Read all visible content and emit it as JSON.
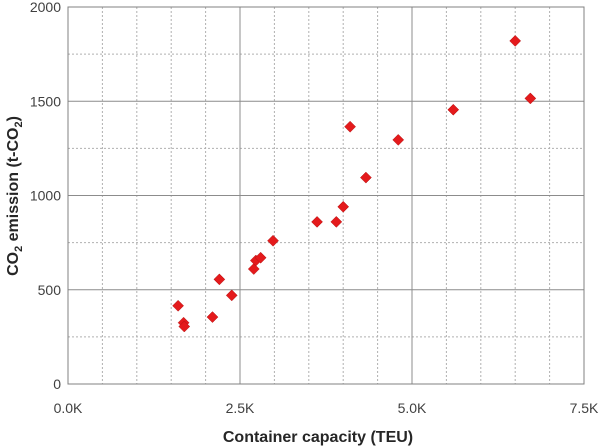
{
  "chart_data": {
    "type": "scatter",
    "title": "",
    "xlabel": "Container capacity (TEU)",
    "ylabel_parts": [
      "CO",
      "2",
      " emission (t-CO",
      "2",
      ")"
    ],
    "xlim": [
      0,
      7500
    ],
    "ylim": [
      0,
      2000
    ],
    "x_ticks": [
      0,
      2500,
      5000,
      7500
    ],
    "x_tick_labels": [
      "0.0K",
      "2.5K",
      "5.0K",
      "7.5K"
    ],
    "y_ticks": [
      0,
      500,
      1000,
      1500,
      2000
    ],
    "y_tick_labels": [
      "0",
      "500",
      "1000",
      "1500",
      "2000"
    ],
    "grid": {
      "major": true,
      "minor_dashed": true,
      "x_minor_step": 500,
      "y_minor_step": 250
    },
    "legend": "none",
    "marker": "diamond",
    "marker_color": "#e41a1c",
    "series": [
      {
        "x": [
          1600,
          1680,
          1690,
          2100,
          2200,
          2380,
          2700,
          2730,
          2800,
          2980,
          3620,
          3900,
          4000,
          4100,
          4330,
          4800,
          5600,
          6500,
          6720
        ],
        "y": [
          415,
          325,
          305,
          355,
          555,
          470,
          610,
          655,
          670,
          760,
          860,
          860,
          940,
          1365,
          1095,
          1295,
          1455,
          1820,
          1515
        ]
      }
    ]
  }
}
